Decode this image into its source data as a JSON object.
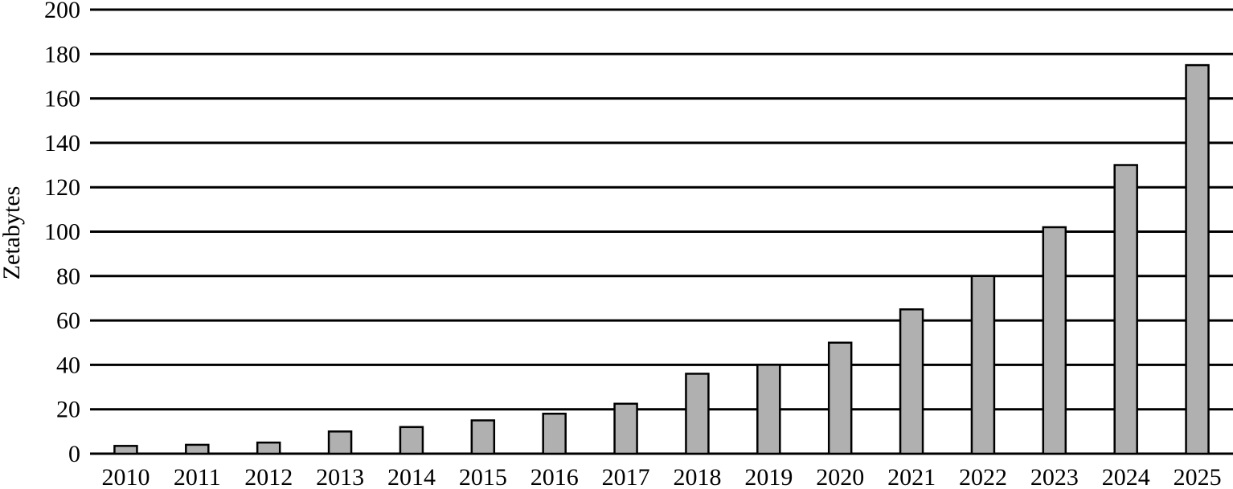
{
  "chart_data": {
    "type": "bar",
    "categories": [
      "2010",
      "2011",
      "2012",
      "2013",
      "2014",
      "2015",
      "2016",
      "2017",
      "2018",
      "2019",
      "2020",
      "2021",
      "2022",
      "2023",
      "2024",
      "2025"
    ],
    "values": [
      3.5,
      4,
      5,
      10,
      12,
      15,
      18,
      22.5,
      36,
      40,
      50,
      65,
      80,
      102,
      130,
      175
    ],
    "ylabel": "Zetabytes",
    "ylim": [
      0,
      200
    ],
    "yticks": [
      "0",
      "20",
      "40",
      "60",
      "80",
      "100",
      "120",
      "140",
      "160",
      "180",
      "200"
    ],
    "grid": true,
    "colors": {
      "bar": "#b0b0b0",
      "bar_stroke": "#000000",
      "grid": "#000000"
    }
  }
}
